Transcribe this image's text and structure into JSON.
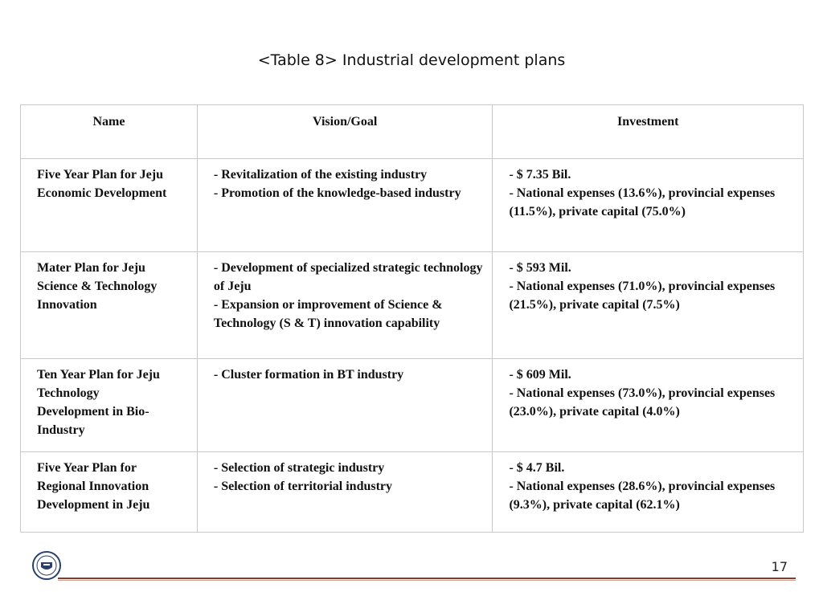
{
  "title": "<Table 8> Industrial development plans",
  "table": {
    "headers": [
      "Name",
      "Vision/Goal",
      "Investment"
    ],
    "rows": [
      {
        "name": "Five Year Plan for Jeju Economic Development",
        "vision": [
          "- Revitalization of the existing industry",
          "- Promotion of the knowledge-based industry"
        ],
        "investment": [
          "- $ 7.35 Bil.",
          "- National expenses (13.6%), provincial expenses (11.5%), private capital (75.0%)"
        ]
      },
      {
        "name": "Mater Plan for Jeju Science & Technology Innovation",
        "vision": [
          "- Development of specialized strategic technology of Jeju",
          "- Expansion or improvement of Science & Technology (S & T) innovation capability"
        ],
        "investment": [
          "- $ 593 Mil.",
          "- National expenses (71.0%), provincial expenses (21.5%), private capital (7.5%)"
        ]
      },
      {
        "name": "Ten Year Plan for Jeju Technology Development in Bio-Industry",
        "vision": [
          "- Cluster formation in BT industry"
        ],
        "investment": [
          "- $ 609 Mil.",
          "- National expenses (73.0%), provincial expenses (23.0%), private capital (4.0%)"
        ]
      },
      {
        "name": "Five Year Plan for Regional Innovation Development in Jeju",
        "vision": [
          "- Selection of strategic industry",
          "- Selection of territorial industry"
        ],
        "investment": [
          "- $ 4.7 Bil.",
          "- National expenses (28.6%), provincial expenses (9.3%), private capital (62.1%)"
        ]
      }
    ]
  },
  "footer": {
    "page_number": "17",
    "logo_icon": "university-seal-icon"
  }
}
